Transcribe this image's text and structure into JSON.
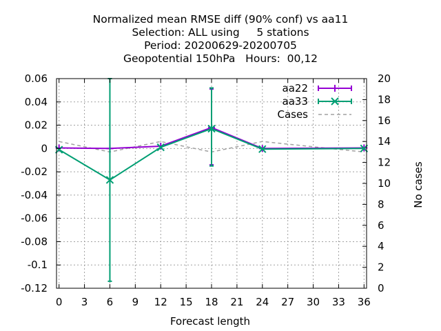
{
  "chart_data": {
    "type": "line",
    "title_lines": [
      "Normalized mean RMSE diff (90% conf) vs aa11",
      "Selection: ALL using     5 stations",
      "Period: 20200629-20200705",
      "Geopotential 150hPa   Hours:  00,12"
    ],
    "xlabel": "Forecast length",
    "ylabel": "",
    "y2label": "No cases",
    "xlim": [
      -0.3,
      36.3
    ],
    "ylim": [
      -0.12,
      0.06
    ],
    "y2lim": [
      0,
      20
    ],
    "xticks": [
      0,
      3,
      6,
      9,
      12,
      15,
      18,
      21,
      24,
      27,
      30,
      33,
      36
    ],
    "yticks": [
      0.06,
      0.04,
      0.02,
      0,
      -0.02,
      -0.04,
      -0.06,
      -0.08,
      -0.1,
      -0.12
    ],
    "ytick_labels": [
      "0.06",
      "0.04",
      "0.02",
      "0",
      "-0.02",
      "-0.04",
      "-0.06",
      "-0.08",
      "-0.1",
      "-0.12"
    ],
    "y2ticks": [
      20,
      18,
      16,
      14,
      12,
      10,
      8,
      6,
      4,
      2,
      0
    ],
    "grid": true,
    "legend_position": "top-right",
    "series": [
      {
        "name": "aa22",
        "color": "#9400d3",
        "marker": "plus",
        "x": [
          0,
          6,
          12,
          18,
          24,
          36
        ],
        "y": [
          0.0005,
          0.0,
          0.002,
          0.018,
          0.0,
          0.0005
        ],
        "err_low": [
          0.0005,
          0.0,
          0.002,
          -0.014,
          0.0,
          0.0005
        ],
        "err_high": [
          0.0005,
          0.0,
          0.002,
          0.051,
          0.0,
          0.0005
        ]
      },
      {
        "name": "aa33",
        "color": "#009e73",
        "marker": "cross",
        "x": [
          0,
          6,
          12,
          18,
          24,
          36
        ],
        "y": [
          -0.001,
          -0.027,
          0.001,
          0.017,
          -0.0005,
          0.0
        ],
        "err_low": [
          -0.001,
          -0.114,
          0.001,
          -0.015,
          -0.0005,
          0.0
        ],
        "err_high": [
          -0.001,
          0.06,
          0.001,
          0.052,
          -0.0005,
          0.0
        ]
      },
      {
        "name": "Cases",
        "color": "#a0a0a0",
        "style": "dashed",
        "axis": "y2",
        "x": [
          0,
          6,
          12,
          18,
          24,
          30,
          36
        ],
        "y": [
          14,
          13,
          14,
          13,
          14,
          13.5,
          13
        ]
      }
    ]
  }
}
